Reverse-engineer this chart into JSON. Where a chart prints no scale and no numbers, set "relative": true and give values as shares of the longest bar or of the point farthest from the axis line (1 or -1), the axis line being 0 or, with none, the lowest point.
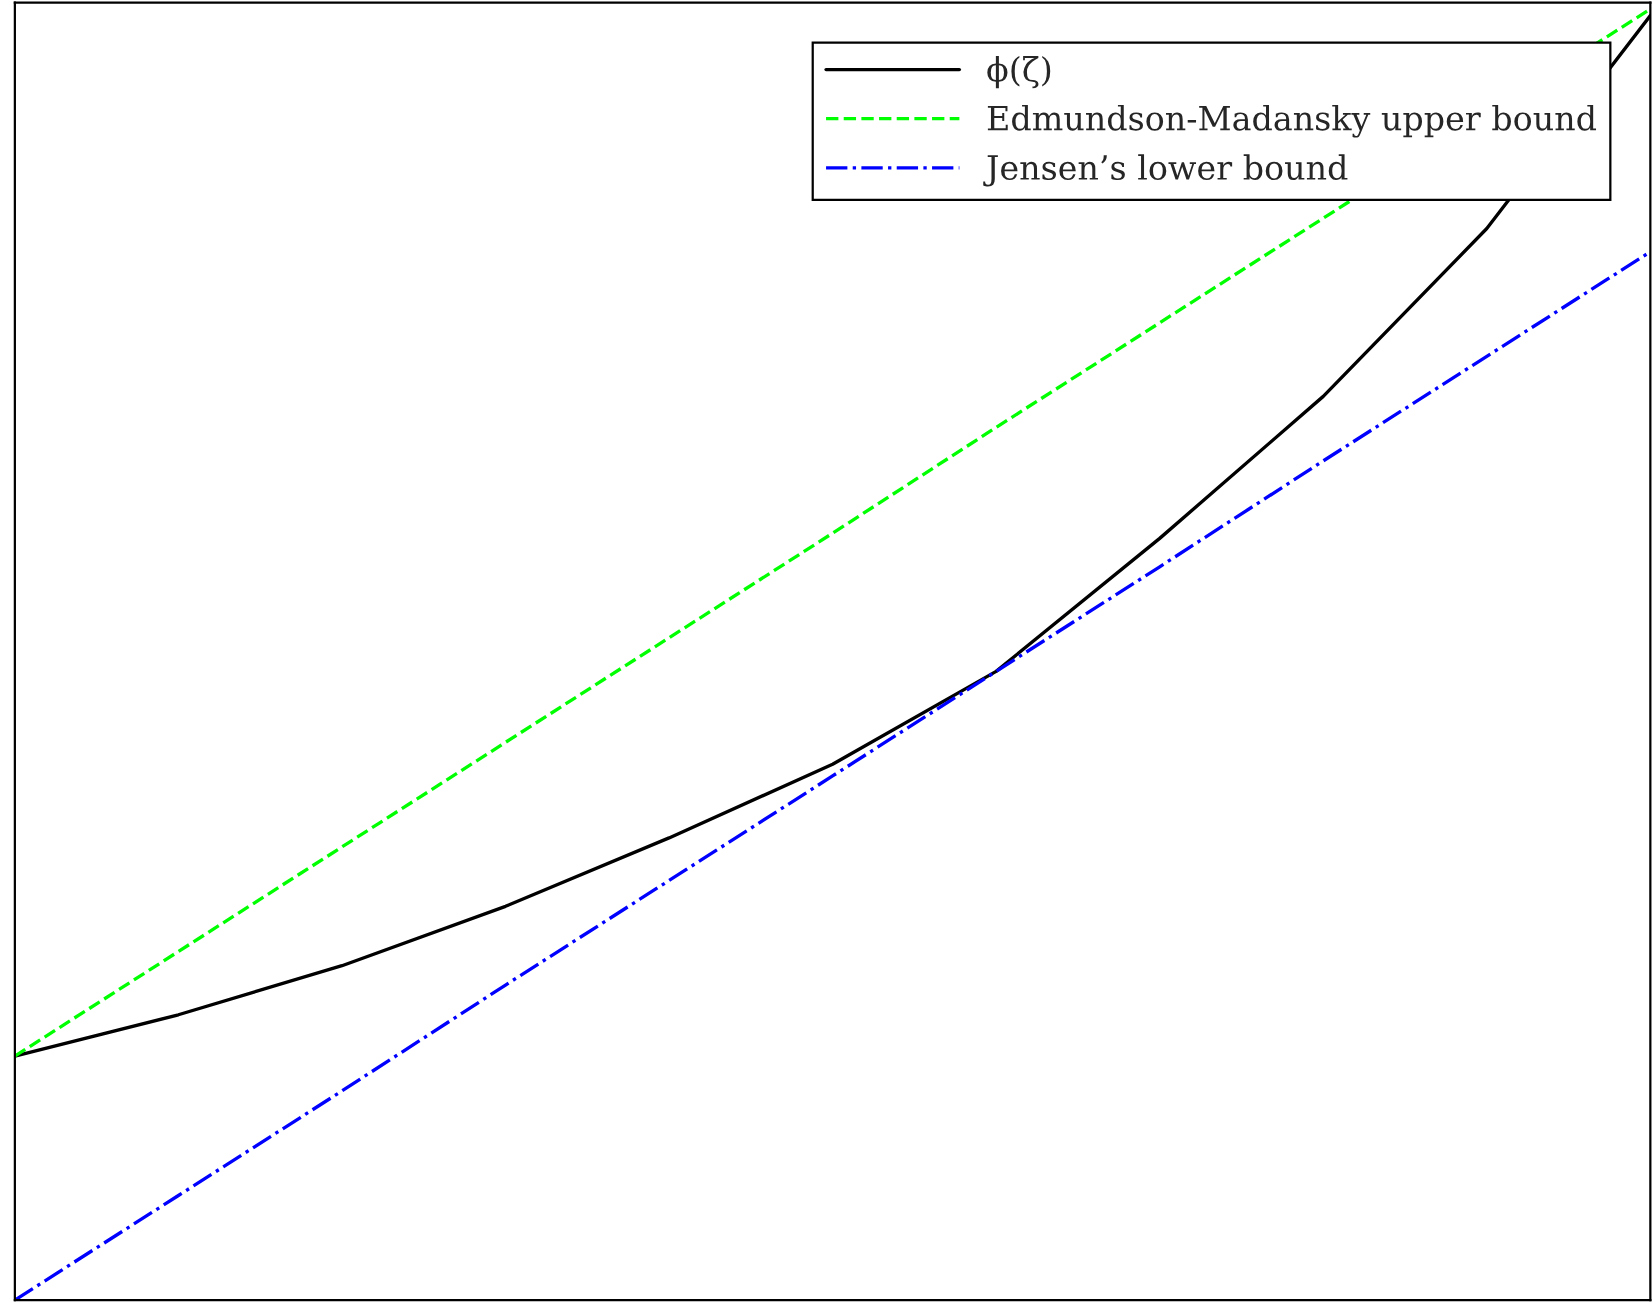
{
  "chart_data": {
    "type": "line",
    "relative": true,
    "legend": "top right",
    "categories": [
      null,
      null,
      null,
      null,
      null,
      null,
      null,
      null,
      null,
      null,
      null
    ],
    "series": [
      {
        "name": "ϕ(ζ)",
        "color": "#000000",
        "line_style": "solid",
        "values": [
          0.189,
          0.221,
          0.259,
          0.305,
          0.358,
          0.415,
          0.487,
          0.59,
          0.7,
          0.83,
          0.995
        ]
      },
      {
        "name": "Edmundson-Madansky upper bound",
        "color": "#00ff00",
        "line_style": "dashed",
        "values": [
          0.189,
          0.27,
          0.351,
          0.432,
          0.513,
          0.594,
          0.676,
          0.757,
          0.838,
          null,
          1.0
        ]
      },
      {
        "name": "Jensen’s lower bound",
        "color": "#0000ff",
        "line_style": "dashdot",
        "values": [
          0,
          0.081,
          0.162,
          0.244,
          0.325,
          0.406,
          0.487,
          0.568,
          0.65,
          0.731,
          0.812
        ]
      }
    ]
  }
}
